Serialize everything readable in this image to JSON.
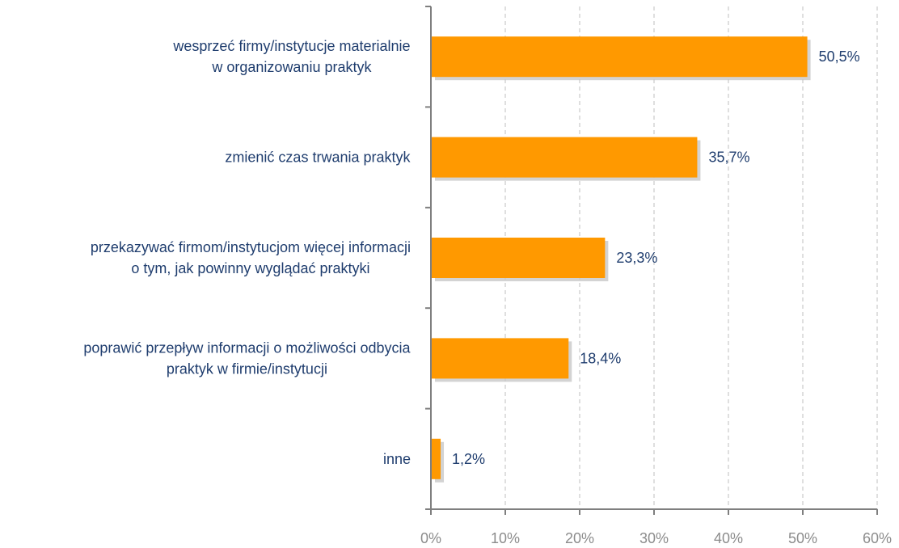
{
  "chart_data": {
    "type": "bar",
    "orientation": "horizontal",
    "categories": [
      [
        "wesprzeć firmy/instytucje materialnie",
        "w organizowaniu praktyk"
      ],
      [
        "zmienić czas trwania praktyk"
      ],
      [
        "przekazywać firmom/instytucjom więcej informacji",
        "o tym, jak powinny wyglądać praktyki"
      ],
      [
        "poprawić przepływ informacji o możliwości odbycia",
        "praktyk w firmie/instytucji"
      ],
      [
        "inne"
      ]
    ],
    "values": [
      50.5,
      35.7,
      23.3,
      18.4,
      1.2
    ],
    "value_labels": [
      "50,5%",
      "35,7%",
      "23,3%",
      "18,4%",
      "1,2%"
    ],
    "xlim": [
      0,
      60
    ],
    "x_ticks": [
      0,
      10,
      20,
      30,
      40,
      50,
      60
    ],
    "x_tick_labels": [
      "0%",
      "10%",
      "20%",
      "30%",
      "40%",
      "50%",
      "60%"
    ],
    "title": "",
    "xlabel": "",
    "ylabel": "",
    "grid": "vertical dashed",
    "legend": "none",
    "colors": {
      "bar": "#FF9900",
      "bar_shadow": "#C8C8C8",
      "category_text": "#1F3D6E",
      "value_text": "#1F3D6E",
      "tick_text": "#8C8C8C",
      "axis": "#7F7F7F",
      "grid": "#BFBFBF"
    }
  }
}
